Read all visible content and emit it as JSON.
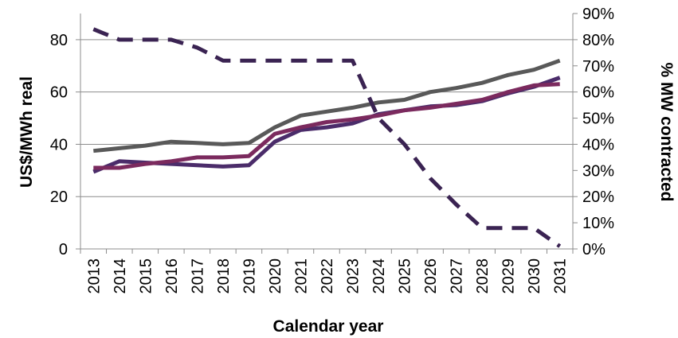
{
  "chart_data": {
    "type": "line",
    "title": "",
    "xlabel": "Calendar year",
    "ylabel": "US$/MWh real",
    "y2label": "% MW contracted",
    "ylim": [
      0,
      90
    ],
    "y2lim": [
      0,
      0.9
    ],
    "grid": true,
    "legend": "none",
    "categories": [
      "2013",
      "2014",
      "2015",
      "2016",
      "2017",
      "2018",
      "2019",
      "2020",
      "2021",
      "2022",
      "2023",
      "2024",
      "2025",
      "2026",
      "2027",
      "2028",
      "2029",
      "2030",
      "2031"
    ],
    "y_ticks": [
      0,
      20,
      40,
      60,
      80
    ],
    "y2_ticks": [
      "0%",
      "10%",
      "20%",
      "30%",
      "40%",
      "50%",
      "60%",
      "70%",
      "80%",
      "90%"
    ],
    "series": [
      {
        "axis": "left",
        "color": "#595959",
        "style": "solid",
        "values": [
          37.5,
          38.5,
          39.5,
          41,
          40.5,
          40,
          40.5,
          46.5,
          51,
          52.5,
          54,
          56,
          57,
          60,
          61.5,
          63.5,
          66.5,
          68.5,
          72
        ]
      },
      {
        "axis": "left",
        "color": "#4b2c6a",
        "style": "solid",
        "values": [
          29.5,
          33.5,
          33,
          32.5,
          32,
          31.5,
          32,
          41,
          45.5,
          46.5,
          48,
          51.5,
          53,
          54.5,
          55,
          56.5,
          59.5,
          62,
          65.5
        ]
      },
      {
        "axis": "left",
        "color": "#7b2a5e",
        "style": "solid",
        "values": [
          31,
          31,
          32.5,
          33.5,
          35,
          35,
          35.5,
          44,
          46.5,
          48.5,
          49.5,
          51,
          53,
          54,
          55.5,
          57,
          60,
          62.5,
          63
        ]
      },
      {
        "axis": "right",
        "color": "#3a2352",
        "style": "dashed",
        "values": [
          0.84,
          0.8,
          0.8,
          0.8,
          0.77,
          0.72,
          0.72,
          0.72,
          0.72,
          0.72,
          0.72,
          0.5,
          0.4,
          0.27,
          0.17,
          0.08,
          0.08,
          0.08,
          0.01
        ]
      }
    ]
  }
}
